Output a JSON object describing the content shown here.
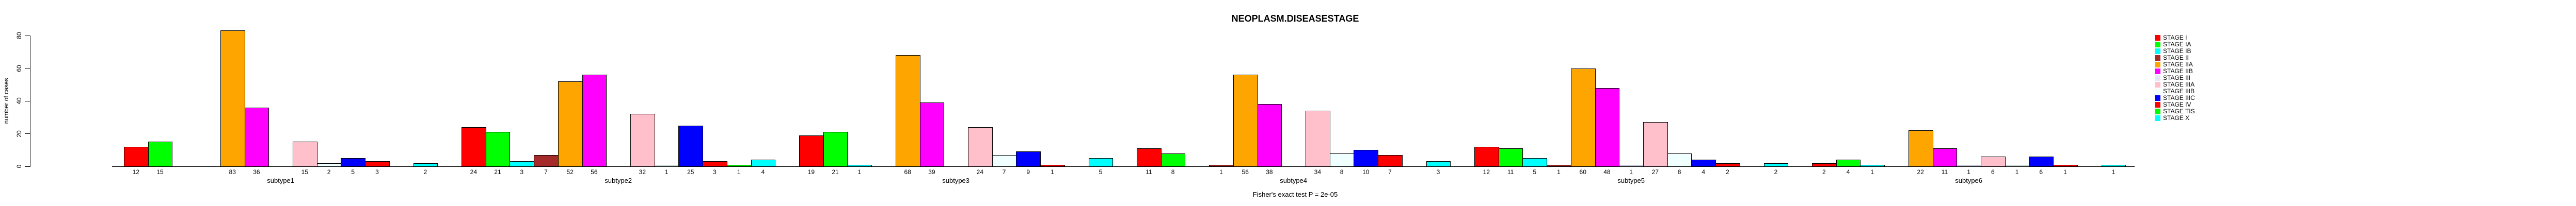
{
  "chart_data": {
    "type": "bar",
    "title": "NEOPLASM.DISEASESTAGE",
    "ylabel": "number of cases",
    "xlabel": "",
    "footer": "Fisher's exact test P = 2e-05",
    "yticks": [
      0,
      20,
      40,
      60,
      80
    ],
    "ylim": [
      0,
      80
    ],
    "grid": false,
    "legend_position": "right",
    "bar_value_labels_shown": true,
    "categories": [
      "subtype1",
      "subtype2",
      "subtype3",
      "subtype4",
      "subtype5",
      "subtype6"
    ],
    "series": [
      {
        "name": "STAGE I",
        "color": "#FF0000",
        "values": [
          12,
          24,
          19,
          11,
          12,
          2
        ]
      },
      {
        "name": "STAGE IA",
        "color": "#00FF00",
        "values": [
          15,
          21,
          21,
          8,
          11,
          4
        ]
      },
      {
        "name": "STAGE IB",
        "color": "#00FFFF",
        "values": [
          0,
          3,
          1,
          0,
          5,
          1
        ]
      },
      {
        "name": "STAGE II",
        "color": "#A52A2A",
        "values": [
          0,
          7,
          0,
          1,
          1,
          0
        ]
      },
      {
        "name": "STAGE IIA",
        "color": "#FFA500",
        "values": [
          83,
          52,
          68,
          56,
          60,
          22
        ]
      },
      {
        "name": "STAGE IIB",
        "color": "#FF00FF",
        "values": [
          36,
          56,
          39,
          38,
          48,
          11
        ]
      },
      {
        "name": "STAGE III",
        "color": "#E6E6FA",
        "values": [
          0,
          0,
          0,
          0,
          1,
          1
        ]
      },
      {
        "name": "STAGE IIIA",
        "color": "#FFC0CB",
        "values": [
          15,
          32,
          24,
          34,
          27,
          6
        ]
      },
      {
        "name": "STAGE IIIB",
        "color": "#F0FFFF",
        "values": [
          2,
          1,
          7,
          8,
          8,
          1
        ]
      },
      {
        "name": "STAGE IIIC",
        "color": "#0000FF",
        "values": [
          5,
          25,
          9,
          10,
          4,
          6
        ]
      },
      {
        "name": "STAGE IV",
        "color": "#FF0000",
        "values": [
          3,
          3,
          1,
          7,
          2,
          1
        ]
      },
      {
        "name": "STAGE TIS",
        "color": "#00FF00",
        "values": [
          0,
          1,
          0,
          0,
          0,
          0
        ]
      },
      {
        "name": "STAGE X",
        "color": "#00FFFF",
        "values": [
          2,
          4,
          5,
          3,
          2,
          1
        ]
      }
    ]
  }
}
